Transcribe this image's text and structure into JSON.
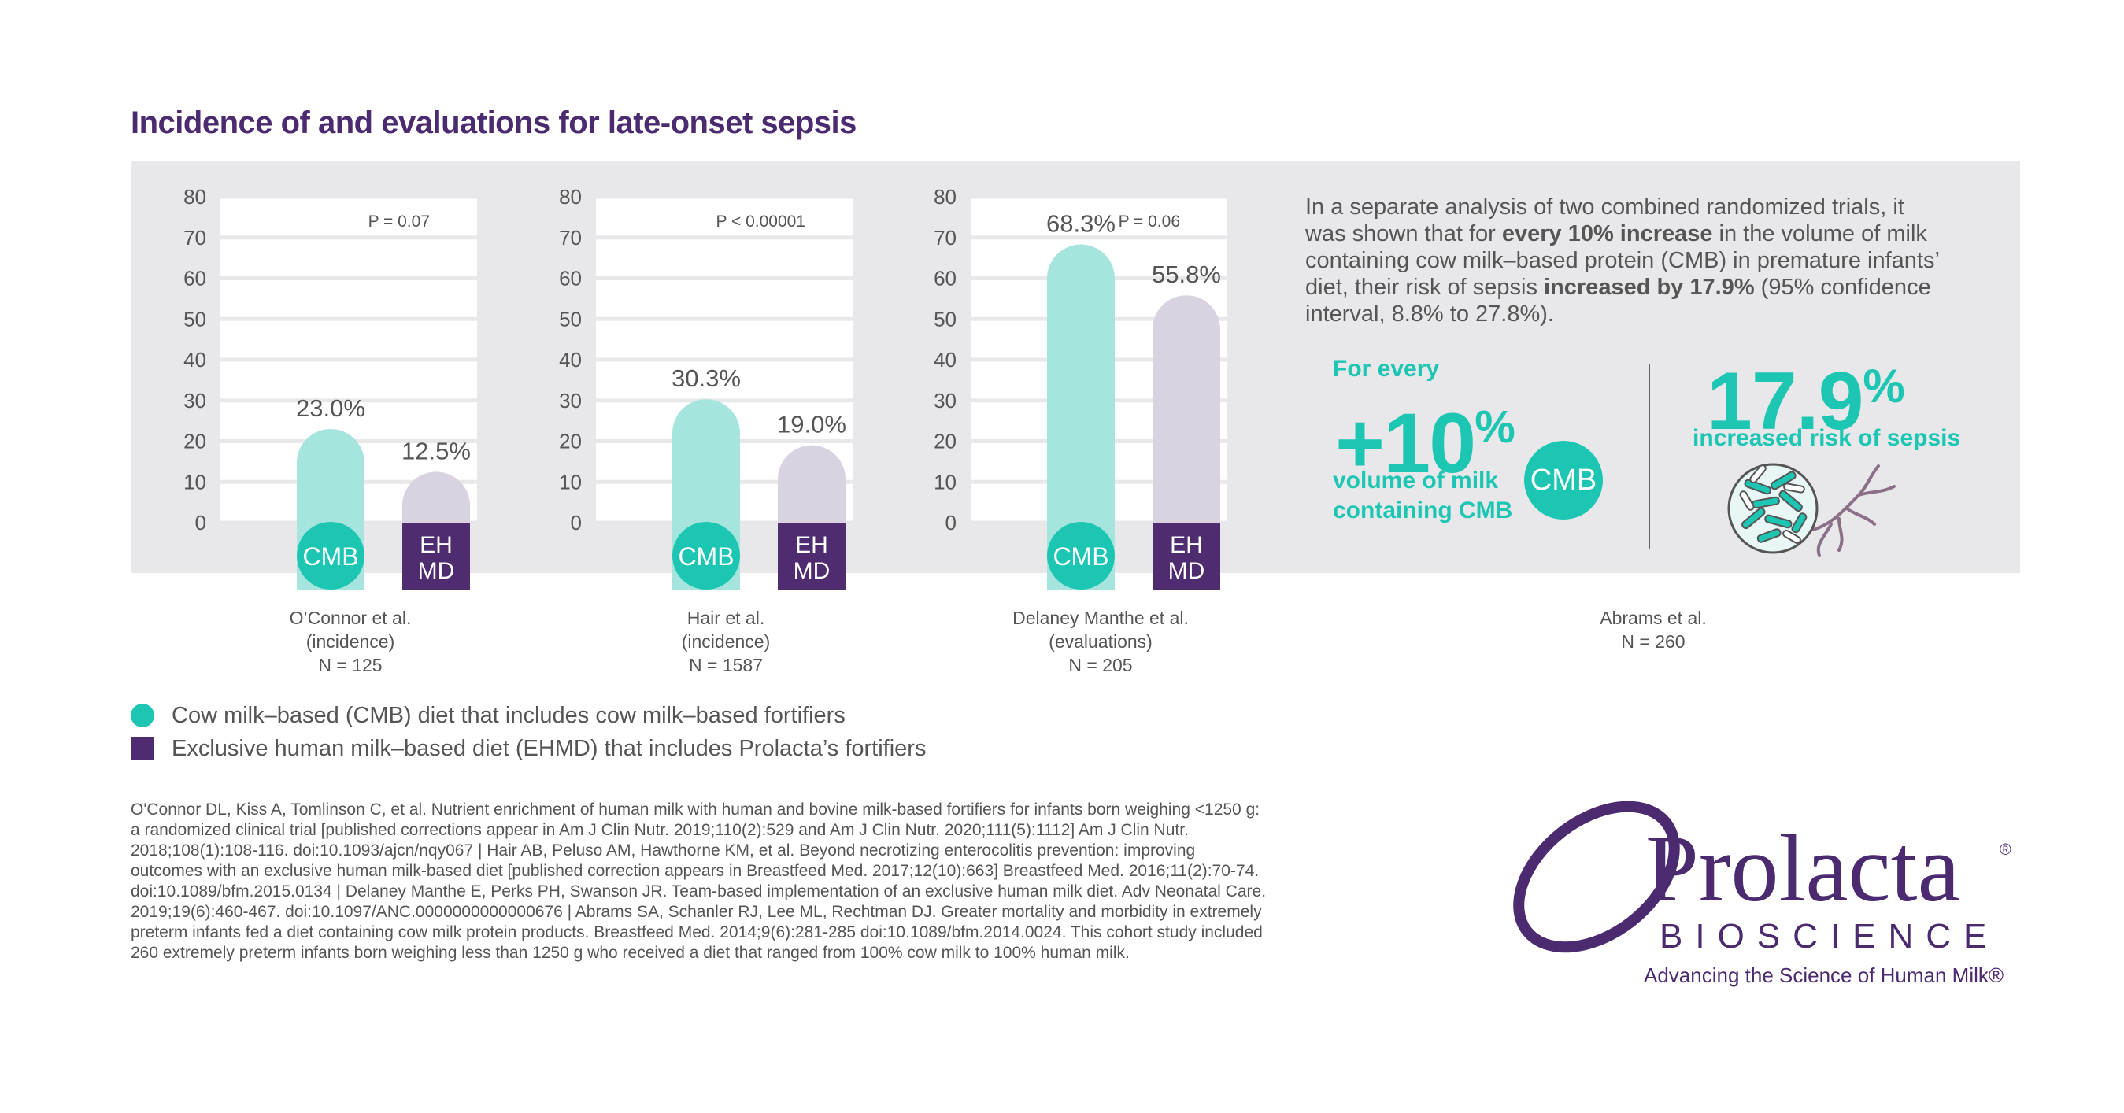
{
  "title": "Incidence of and evaluations for late-onset sepsis",
  "colors": {
    "cmb": "#1cc6b3",
    "cmb_light": "#a6e5de",
    "ehmd": "#4f2c6f",
    "ehmd_light": "#d9d2e1",
    "brand": "#4b2a70"
  },
  "chart_data": [
    {
      "type": "bar",
      "categories": [
        "CMB",
        "EH MD"
      ],
      "values": [
        23.0,
        12.5
      ],
      "value_labels": [
        "23.0%",
        "12.5%"
      ],
      "ylim": [
        0,
        80
      ],
      "yticks": [
        "80",
        "70",
        "60",
        "50",
        "40",
        "30",
        "20",
        "10",
        "0"
      ],
      "pvalue": "P = 0.07",
      "caption": [
        "O’Connor et al.",
        "(incidence)",
        "N = 125"
      ]
    },
    {
      "type": "bar",
      "categories": [
        "CMB",
        "EH MD"
      ],
      "values": [
        30.3,
        19.0
      ],
      "value_labels": [
        "30.3%",
        "19.0%"
      ],
      "ylim": [
        0,
        80
      ],
      "yticks": [
        "80",
        "70",
        "60",
        "50",
        "40",
        "30",
        "20",
        "10",
        "0"
      ],
      "pvalue": "P < 0.00001",
      "caption": [
        "Hair et al.",
        "(incidence)",
        "N = 1587"
      ]
    },
    {
      "type": "bar",
      "categories": [
        "CMB",
        "EH MD"
      ],
      "values": [
        68.3,
        55.8
      ],
      "value_labels": [
        "68.3%",
        "55.8%"
      ],
      "ylim": [
        0,
        80
      ],
      "yticks": [
        "80",
        "70",
        "60",
        "50",
        "40",
        "30",
        "20",
        "10",
        "0"
      ],
      "pvalue": "P = 0.06",
      "caption": [
        "Delaney Manthe et al.",
        "(evaluations)",
        "N = 205"
      ]
    }
  ],
  "badges": {
    "cmb": "CMB",
    "ehmd_line1": "EH",
    "ehmd_line2": "MD"
  },
  "abrams": {
    "text_1": "In a separate analysis of two combined randomized trials, it was shown that for ",
    "text_bold_1": "every 10% increase",
    "text_2": " in the volume of milk containing cow milk–based protein (CMB) in premature infants’ diet, their risk of sepsis ",
    "text_bold_2": "increased by 17.9%",
    "text_3": " (95% confidence interval, 8.8% to 27.8%).",
    "for_every": "For every",
    "plus10": "+10",
    "plus10_pct": "%",
    "volume_line1": "volume of milk",
    "volume_line2": "containing CMB",
    "cmb_circle": "CMB",
    "big_value": "17.9",
    "big_pct": "%",
    "increased_label": "increased risk of sepsis",
    "caption": [
      "Abrams et al.",
      "N = 260"
    ]
  },
  "legend": [
    {
      "label": "Cow milk–based (CMB) diet that includes cow milk–based fortifiers"
    },
    {
      "label": "Exclusive human milk–based diet (EHMD) that includes Prolacta’s fortifiers"
    }
  ],
  "references": [
    "O'Connor DL, Kiss A, Tomlinson C, et al. Nutrient enrichment of human milk with human and bovine milk-based fortifiers for infants born weighing <1250 g:",
    "a randomized clinical trial [published corrections appear in Am J Clin Nutr. 2019;110(2):529 and Am J Clin Nutr. 2020;111(5):1112] Am J Clin Nutr.",
    "2018;108(1):108-116. doi:10.1093/ajcn/nqy067 | Hair AB, Peluso AM, Hawthorne KM, et al. Beyond necrotizing enterocolitis prevention: improving",
    "outcomes with an exclusive human milk-based diet [published correction appears in Breastfeed Med. 2017;12(10):663] Breastfeed Med. 2016;11(2):70-74.",
    "doi:10.1089/bfm.2015.0134 | Delaney Manthe E, Perks PH, Swanson JR. Team-based implementation of an exclusive human milk diet. Adv Neonatal Care.",
    "2019;19(6):460-467. doi:10.1097/ANC.0000000000000676 | Abrams SA, Schanler RJ, Lee ML, Rechtman DJ. Greater mortality and morbidity in extremely",
    "preterm infants fed a diet containing cow milk protein products. Breastfeed Med. 2014;9(6):281-285 doi:10.1089/bfm.2014.0024. This cohort study included",
    "260 extremely preterm infants born weighing less than 1250 g who received a diet that ranged from 100% cow milk to 100% human milk."
  ],
  "logo": {
    "name": "Prolacta",
    "registered": "®",
    "sub": "BIOSCIENCE",
    "tagline": "Advancing the Science of Human Milk®"
  }
}
